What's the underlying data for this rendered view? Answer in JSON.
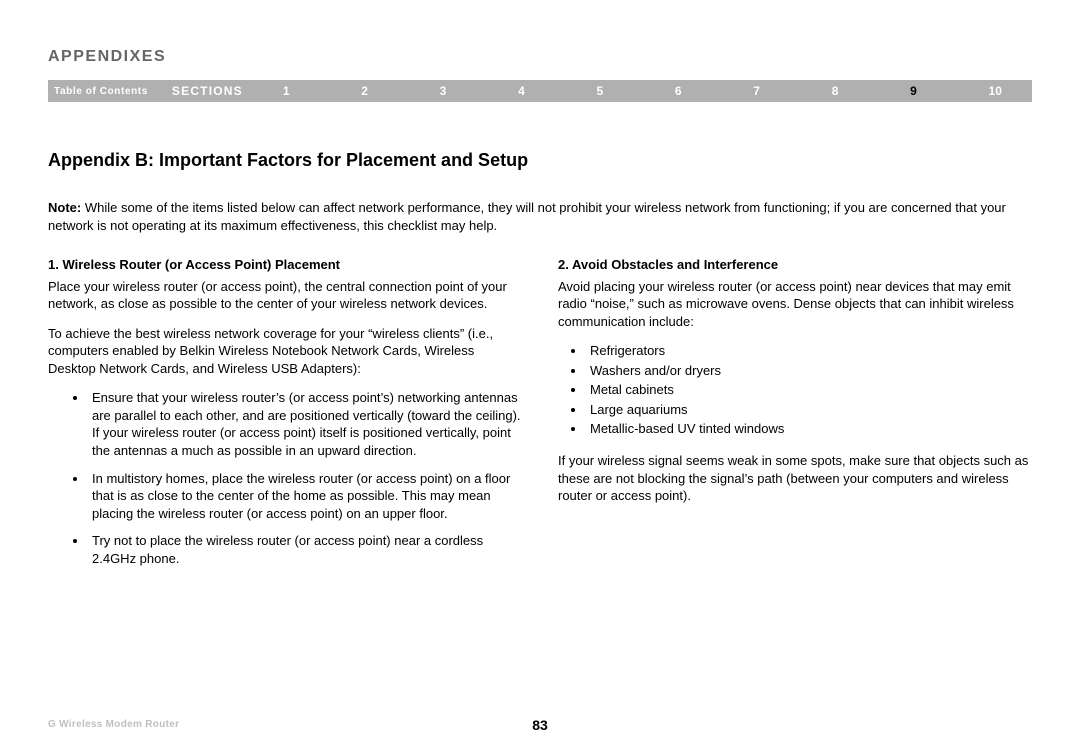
{
  "header": {
    "title": "APPENDIXES"
  },
  "nav": {
    "toc": "Table of Contents",
    "sections_label": "SECTIONS",
    "items": [
      "1",
      "2",
      "3",
      "4",
      "5",
      "6",
      "7",
      "8",
      "9",
      "10"
    ],
    "active_index": 8
  },
  "content": {
    "appendix_title": "Appendix B: Important Factors for Placement and Setup",
    "note_label": "Note:",
    "note_text": " While some of the items listed below can affect network performance, they will not prohibit your wireless network from functioning; if you are concerned that your network is not operating at its maximum effectiveness, this checklist may help.",
    "left": {
      "heading": "1. Wireless Router (or Access Point) Placement",
      "p1": "Place your wireless router (or access point), the central connection point of your network, as close as possible to the center of your wireless network devices.",
      "p2": "To achieve the best wireless network coverage for your “wireless clients” (i.e., computers enabled by Belkin Wireless Notebook Network Cards, Wireless Desktop Network Cards, and Wireless USB Adapters):",
      "bullets": {
        "b1": "Ensure that your wireless router’s (or access point’s) networking antennas are parallel to each other, and are positioned vertically (toward the ceiling). If your wireless router (or access point) itself is positioned vertically, point the antennas a much as possible in an upward direction.",
        "b2": "In multistory homes, place the wireless router (or access point) on a floor that is as close to the center of the home as possible. This may mean placing the wireless router (or access point) on an upper floor.",
        "b3": "Try not to place the wireless router (or access point) near a cordless 2.4GHz phone."
      }
    },
    "right": {
      "heading": "2. Avoid Obstacles and Interference",
      "p1": "Avoid placing your wireless router (or access point) near devices that may emit radio “noise,” such as microwave ovens. Dense objects that can inhibit wireless communication include:",
      "bullets": {
        "b1": "Refrigerators",
        "b2": "Washers and/or dryers",
        "b3": "Metal cabinets",
        "b4": "Large aquariums",
        "b5": "Metallic-based UV tinted windows"
      },
      "p2": "If your wireless signal seems weak in some spots, make sure that objects such as these are not blocking the signal’s path (between your computers and wireless router or access point)."
    }
  },
  "footer": {
    "product": "G Wireless Modem Router",
    "page": "83"
  },
  "colors": {
    "nav_bg": "#b0b0b0",
    "header_gray": "#666666",
    "footer_gray": "#c0c0c0"
  }
}
